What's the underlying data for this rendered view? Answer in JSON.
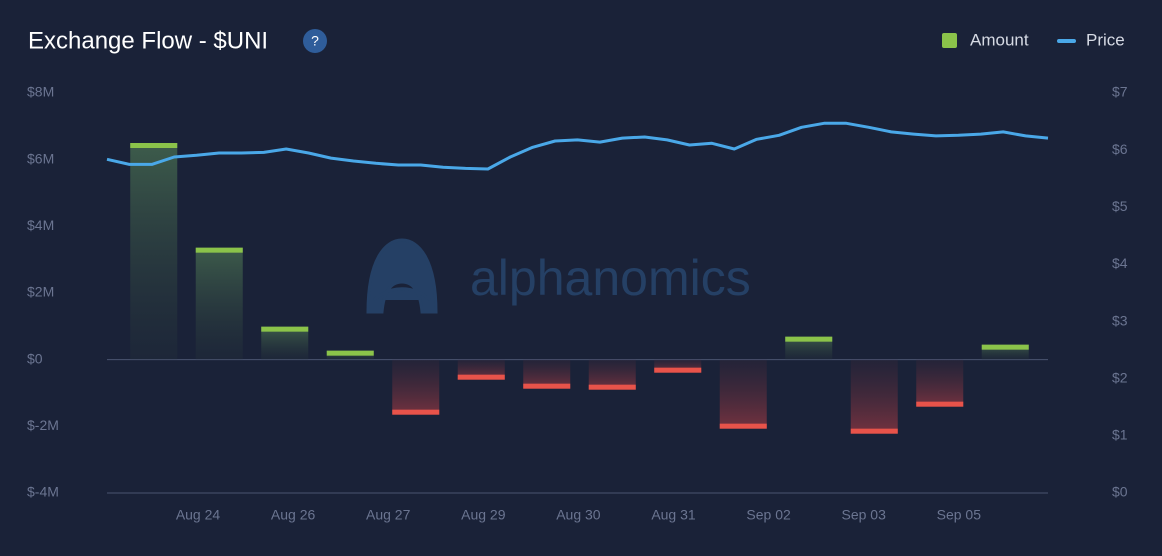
{
  "chart_data": {
    "type": "bar",
    "title": "Exchange Flow - $UNI",
    "help_icon": "?",
    "watermark": "alphanomics",
    "x_labels": [
      "Aug 24",
      "Aug 26",
      "Aug 27",
      "Aug 29",
      "Aug 30",
      "Aug 31",
      "Sep 02",
      "Sep 03",
      "Sep 05"
    ],
    "series": [
      {
        "name": "Amount",
        "type": "bar",
        "color": "#8bc34a",
        "negative_color": "#e8534a",
        "axis": "y",
        "values": [
          6500000,
          3360000,
          990000,
          270000,
          -1650000,
          -600000,
          -870000,
          -900000,
          -390000,
          -2070000,
          690000,
          -2220000,
          -1410000,
          450000
        ]
      },
      {
        "name": "Price",
        "type": "line",
        "color": "#4aa8e8",
        "axis": "y2",
        "values": [
          5.84,
          5.75,
          5.75,
          5.88,
          5.91,
          5.95,
          5.95,
          5.96,
          6.02,
          5.95,
          5.86,
          5.81,
          5.77,
          5.74,
          5.74,
          5.7,
          5.68,
          5.67,
          5.88,
          6.05,
          6.16,
          6.18,
          6.14,
          6.21,
          6.23,
          6.18,
          6.09,
          6.12,
          6.02,
          6.19,
          6.26,
          6.4,
          6.47,
          6.47,
          6.4,
          6.32,
          6.28,
          6.25,
          6.26,
          6.28,
          6.32,
          6.25,
          6.21
        ]
      }
    ],
    "ylim": [
      -4000000,
      8000000
    ],
    "yticks": [
      {
        "value": -4000000,
        "label": "$-4M"
      },
      {
        "value": -2000000,
        "label": "$-2M"
      },
      {
        "value": 0,
        "label": "$0"
      },
      {
        "value": 2000000,
        "label": "$2M"
      },
      {
        "value": 4000000,
        "label": "$4M"
      },
      {
        "value": 6000000,
        "label": "$6M"
      },
      {
        "value": 8000000,
        "label": "$8M"
      }
    ],
    "y2lim": [
      0,
      7
    ],
    "y2ticks": [
      {
        "value": 0,
        "label": "$0"
      },
      {
        "value": 1,
        "label": "$1"
      },
      {
        "value": 2,
        "label": "$2"
      },
      {
        "value": 3,
        "label": "$3"
      },
      {
        "value": 4,
        "label": "$4"
      },
      {
        "value": 5,
        "label": "$5"
      },
      {
        "value": 6,
        "label": "$6"
      },
      {
        "value": 7,
        "label": "$7"
      }
    ],
    "grid": false,
    "legend": "top-right"
  }
}
